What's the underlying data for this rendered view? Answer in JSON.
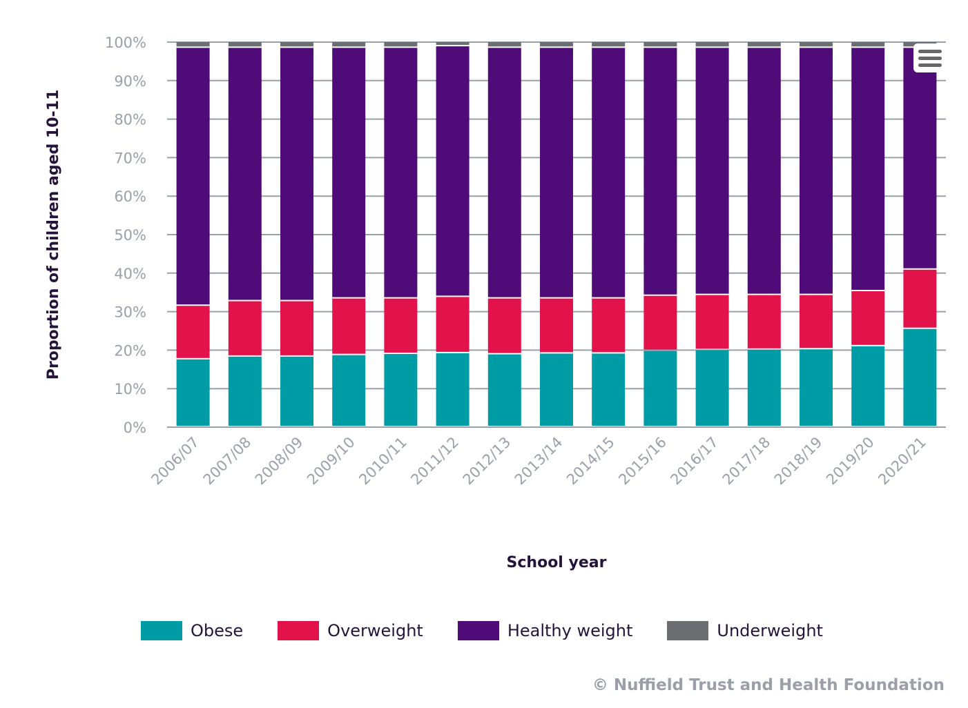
{
  "chart_data": {
    "type": "bar",
    "stacked": true,
    "title": "",
    "xlabel": "School year",
    "ylabel": "Proportion of children aged 10-11",
    "ylim": [
      0,
      100
    ],
    "yticks": [
      "0%",
      "10%",
      "20%",
      "30%",
      "40%",
      "50%",
      "60%",
      "70%",
      "80%",
      "90%",
      "100%"
    ],
    "grid": true,
    "legend_position": "bottom",
    "categories": [
      "2006/07",
      "2007/08",
      "2008/09",
      "2009/10",
      "2010/11",
      "2011/12",
      "2012/13",
      "2013/14",
      "2014/15",
      "2015/16",
      "2016/17",
      "2017/18",
      "2018/19",
      "2019/20",
      "2020/21"
    ],
    "series": [
      {
        "name": "Obese",
        "color": "#009ca6",
        "values": [
          17.6,
          18.3,
          18.3,
          18.7,
          19.0,
          19.2,
          18.9,
          19.1,
          19.1,
          19.8,
          20.0,
          20.1,
          20.2,
          21.0,
          25.5
        ]
      },
      {
        "name": "Overweight",
        "color": "#e2134a",
        "values": [
          13.9,
          14.4,
          14.4,
          14.7,
          14.4,
          14.6,
          14.5,
          14.3,
          14.3,
          14.3,
          14.3,
          14.2,
          14.1,
          14.3,
          15.4
        ]
      },
      {
        "name": "Healthy weight",
        "color": "#4f0c78",
        "values": [
          67.0,
          65.8,
          65.8,
          65.1,
          65.1,
          65.1,
          65.1,
          65.1,
          65.1,
          64.4,
          64.2,
          64.2,
          64.2,
          63.2,
          57.6
        ]
      },
      {
        "name": "Underweight",
        "color": "#6d6e71",
        "values": [
          1.5,
          1.5,
          1.5,
          1.5,
          1.5,
          1.1,
          1.5,
          1.5,
          1.5,
          1.5,
          1.5,
          1.5,
          1.5,
          1.5,
          1.5
        ]
      }
    ]
  },
  "credit": "© Nuffield Trust and Health Foundation",
  "menu": {
    "icon": "hamburger-menu-icon"
  }
}
